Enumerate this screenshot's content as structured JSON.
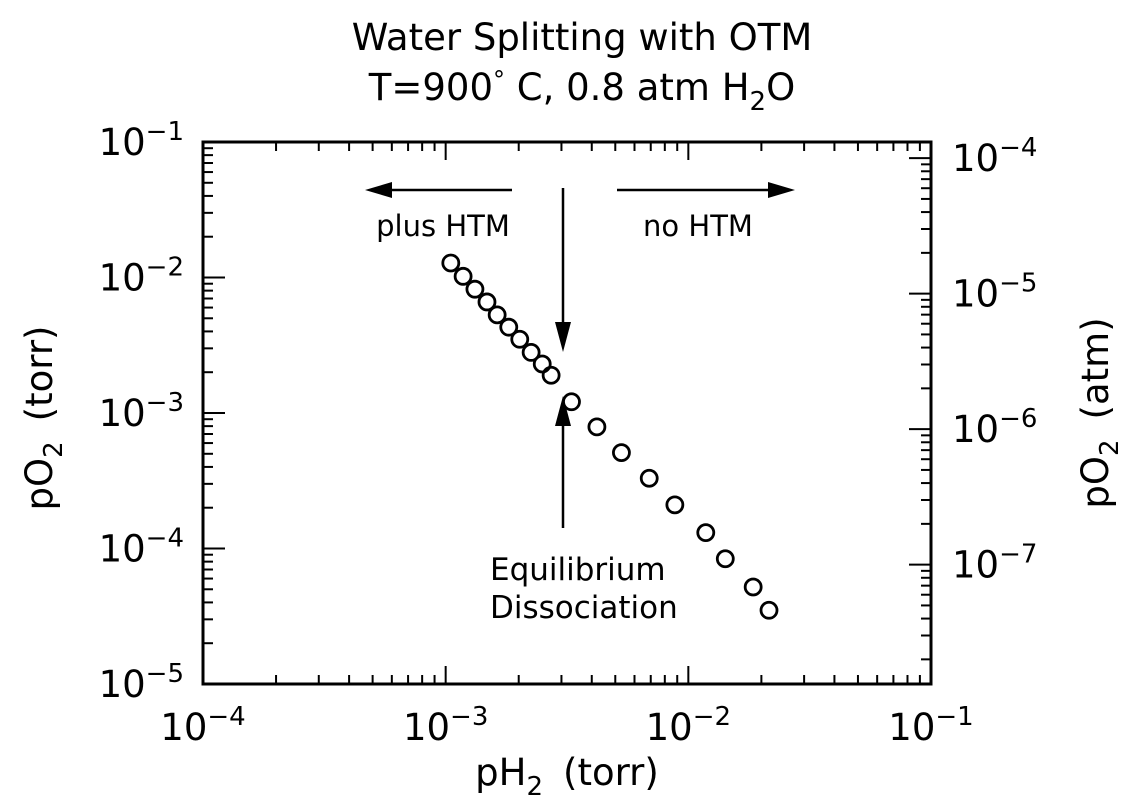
{
  "chart_data": {
    "type": "scatter",
    "title_line1": "Water Splitting with OTM",
    "title_line2": {
      "prefix": "T=900",
      "deg": "°",
      "mid": " C,  0.8  atm  H",
      "sub": "2",
      "suffix": "O"
    },
    "xlabel": {
      "main": "pH",
      "sub": "2",
      "unit": "(torr)"
    },
    "ylabel_left": {
      "main": "pO",
      "sub": "2",
      "unit": "(torr)"
    },
    "ylabel_right": {
      "main": "pO",
      "sub": "2",
      "unit": "(atm)"
    },
    "x_scale": "log",
    "y_scale": "log",
    "xlim": [
      0.0001,
      0.1
    ],
    "ylim": [
      1e-05,
      0.1
    ],
    "y_right_lim": [
      1.31579e-08,
      0.000131579
    ],
    "x_ticks": [
      {
        "base": "10",
        "exp": "−4",
        "value": 0.0001
      },
      {
        "base": "10",
        "exp": "−3",
        "value": 0.001
      },
      {
        "base": "10",
        "exp": "−2",
        "value": 0.01
      },
      {
        "base": "10",
        "exp": "−1",
        "value": 0.1
      }
    ],
    "y_ticks_left": [
      {
        "base": "10",
        "exp": "−5",
        "value": 1e-05
      },
      {
        "base": "10",
        "exp": "−4",
        "value": 0.0001
      },
      {
        "base": "10",
        "exp": "−3",
        "value": 0.001
      },
      {
        "base": "10",
        "exp": "−2",
        "value": 0.01
      },
      {
        "base": "10",
        "exp": "−1",
        "value": 0.1
      }
    ],
    "y_ticks_right": [
      {
        "base": "10",
        "exp": "−7",
        "value": 1e-07
      },
      {
        "base": "10",
        "exp": "−6",
        "value": 1e-06
      },
      {
        "base": "10",
        "exp": "−5",
        "value": 1e-05
      },
      {
        "base": "10",
        "exp": "−4",
        "value": 0.0001
      }
    ],
    "grid": false,
    "series": [
      {
        "marker": "open-circle",
        "points": [
          {
            "x": 0.00105,
            "y": 0.0128
          },
          {
            "x": 0.00118,
            "y": 0.0102
          },
          {
            "x": 0.00132,
            "y": 0.0082
          },
          {
            "x": 0.00148,
            "y": 0.0066
          },
          {
            "x": 0.00163,
            "y": 0.0053
          },
          {
            "x": 0.00182,
            "y": 0.0043
          },
          {
            "x": 0.00202,
            "y": 0.0035
          },
          {
            "x": 0.00225,
            "y": 0.0028
          },
          {
            "x": 0.0025,
            "y": 0.0023
          },
          {
            "x": 0.00272,
            "y": 0.0019
          },
          {
            "x": 0.0033,
            "y": 0.00121
          },
          {
            "x": 0.0042,
            "y": 0.00079
          },
          {
            "x": 0.0053,
            "y": 0.00051
          },
          {
            "x": 0.0069,
            "y": 0.00033
          },
          {
            "x": 0.0088,
            "y": 0.00021
          },
          {
            "x": 0.0118,
            "y": 0.000131
          },
          {
            "x": 0.0142,
            "y": 8.4e-05
          },
          {
            "x": 0.0185,
            "y": 5.2e-05
          },
          {
            "x": 0.0215,
            "y": 3.5e-05
          }
        ]
      }
    ],
    "annotations": {
      "plus_htm": "plus  HTM",
      "no_htm": "no  HTM",
      "equilibrium_line1": "Equilibrium",
      "equilibrium_line2": "Dissociation"
    }
  }
}
